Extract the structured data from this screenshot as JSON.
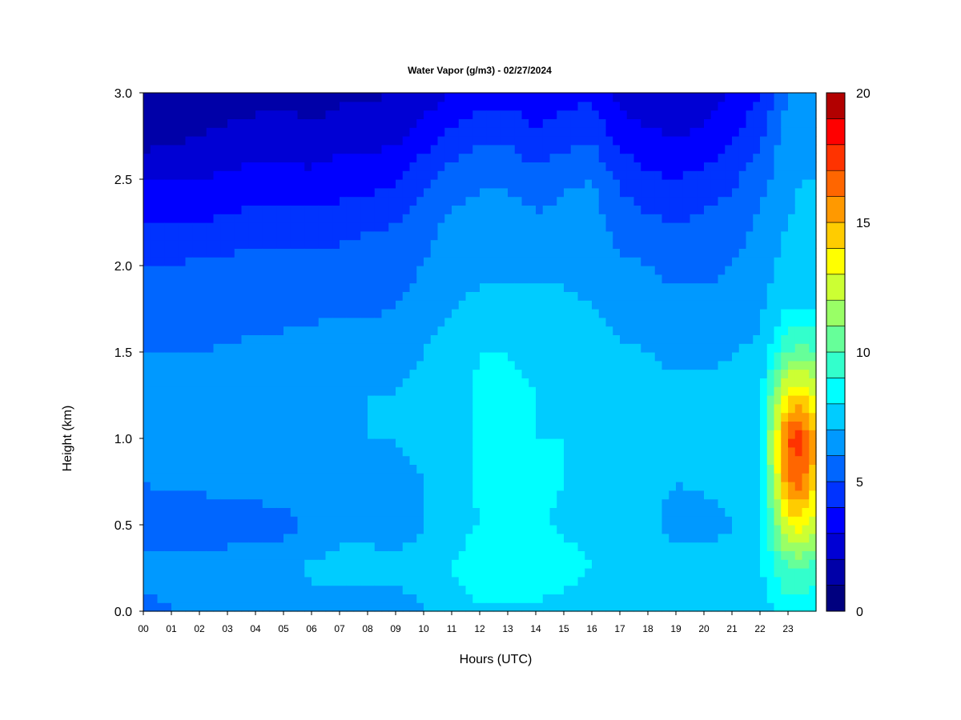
{
  "chart_data": {
    "type": "heatmap",
    "title": "Water Vapor (g/m3) - 02/27/2024",
    "xlabel": "Hours (UTC)",
    "ylabel": "Height (km)",
    "x_ticks": [
      "00",
      "01",
      "02",
      "03",
      "04",
      "05",
      "06",
      "07",
      "08",
      "09",
      "10",
      "11",
      "12",
      "13",
      "14",
      "15",
      "16",
      "17",
      "18",
      "19",
      "20",
      "21",
      "22",
      "23"
    ],
    "y_ticks": [
      "0.0",
      "0.5",
      "1.0",
      "1.5",
      "2.0",
      "2.5",
      "3.0"
    ],
    "xlim": [
      0,
      24
    ],
    "ylim": [
      0,
      3
    ],
    "colorbar": {
      "min": 0,
      "max": 20,
      "step": 1,
      "ticks": [
        "0",
        "5",
        "10",
        "15",
        "20"
      ],
      "colors": [
        "#00007f",
        "#0000a8",
        "#0000d4",
        "#0000ff",
        "#0033ff",
        "#0066ff",
        "#0099ff",
        "#00ccff",
        "#00ffff",
        "#33ffcc",
        "#66ff99",
        "#99ff66",
        "#ccff33",
        "#ffff00",
        "#ffcc00",
        "#ff9900",
        "#ff6600",
        "#ff3300",
        "#ff0000",
        "#b20000"
      ]
    },
    "heights_km": [
      0.0,
      0.25,
      0.5,
      0.75,
      1.0,
      1.25,
      1.5,
      1.75,
      2.0,
      2.25,
      2.5,
      2.75,
      3.0
    ],
    "hours": [
      0,
      1,
      2,
      3,
      4,
      5,
      6,
      7,
      8,
      9,
      10,
      11,
      12,
      13,
      14,
      15,
      16,
      17,
      18,
      19,
      20,
      21,
      22,
      23,
      23.5,
      24
    ],
    "profiles": [
      [
        5.5,
        6.5,
        5.0,
        6.0,
        6.5,
        6.5,
        6.0,
        5.5,
        5.0,
        4.0,
        3.0,
        1.5,
        1.0
      ],
      [
        6.0,
        6.5,
        5.2,
        6.3,
        6.5,
        6.5,
        6.0,
        5.5,
        5.0,
        4.0,
        3.0,
        1.8,
        1.2
      ],
      [
        6.0,
        6.5,
        5.2,
        6.3,
        6.6,
        6.6,
        6.0,
        5.6,
        5.2,
        4.0,
        3.0,
        2.0,
        1.3
      ],
      [
        6.0,
        6.7,
        5.3,
        6.5,
        6.6,
        6.6,
        6.1,
        5.6,
        5.3,
        4.2,
        3.2,
        2.2,
        1.5
      ],
      [
        6.0,
        6.8,
        5.4,
        6.5,
        6.7,
        6.7,
        6.2,
        5.7,
        5.4,
        4.4,
        3.4,
        2.4,
        1.6
      ],
      [
        6.0,
        6.8,
        5.6,
        6.7,
        6.8,
        6.8,
        6.2,
        5.8,
        5.4,
        4.4,
        3.4,
        2.4,
        1.8
      ],
      [
        6.5,
        7.2,
        6.2,
        6.8,
        6.9,
        6.9,
        6.4,
        5.8,
        5.4,
        4.3,
        3.3,
        2.2,
        1.5
      ],
      [
        6.5,
        7.4,
        6.6,
        6.8,
        6.9,
        6.9,
        6.6,
        5.8,
        5.5,
        4.5,
        3.5,
        2.6,
        1.8
      ],
      [
        6.5,
        7.4,
        6.7,
        6.8,
        7.0,
        7.0,
        6.6,
        5.8,
        5.6,
        4.8,
        3.6,
        2.6,
        1.8
      ],
      [
        6.5,
        7.2,
        6.5,
        6.8,
        7.0,
        7.0,
        6.8,
        6.0,
        5.7,
        5.0,
        3.8,
        2.8,
        2.0
      ],
      [
        7.0,
        7.5,
        7.0,
        7.0,
        7.2,
        7.2,
        7.0,
        6.4,
        6.0,
        5.6,
        4.8,
        3.5,
        2.4
      ],
      [
        7.5,
        8.0,
        7.5,
        7.6,
        7.6,
        7.6,
        7.5,
        7.0,
        6.6,
        6.2,
        5.6,
        4.3,
        3.0
      ],
      [
        7.8,
        8.8,
        8.0,
        8.2,
        8.2,
        8.2,
        8.0,
        7.2,
        6.8,
        6.5,
        5.8,
        4.8,
        3.6
      ],
      [
        7.8,
        8.8,
        8.2,
        8.2,
        8.2,
        8.2,
        8.0,
        7.2,
        6.8,
        6.5,
        5.8,
        4.8,
        3.6
      ],
      [
        7.8,
        8.8,
        8.2,
        8.2,
        8.0,
        8.0,
        7.8,
        7.2,
        6.8,
        6.2,
        5.4,
        4.2,
        3.2
      ],
      [
        7.5,
        8.5,
        7.8,
        8.0,
        8.0,
        7.8,
        7.6,
        7.2,
        6.8,
        6.4,
        5.8,
        4.6,
        3.6
      ],
      [
        7.2,
        8.0,
        7.6,
        7.8,
        7.8,
        7.8,
        7.5,
        7.0,
        6.8,
        6.5,
        6.0,
        4.8,
        3.8
      ],
      [
        7.2,
        7.8,
        7.5,
        7.6,
        7.6,
        7.6,
        7.2,
        6.6,
        6.2,
        5.6,
        4.8,
        3.6,
        2.6
      ],
      [
        7.0,
        7.6,
        7.3,
        7.5,
        7.5,
        7.4,
        7.0,
        6.4,
        6.0,
        5.2,
        4.2,
        3.2,
        2.2
      ],
      [
        7.0,
        7.5,
        6.5,
        7.0,
        7.2,
        7.2,
        6.8,
        6.2,
        5.8,
        5.0,
        4.0,
        3.0,
        2.0
      ],
      [
        7.0,
        7.6,
        6.5,
        7.2,
        7.4,
        7.2,
        6.8,
        6.2,
        5.8,
        5.2,
        4.4,
        3.2,
        2.4
      ],
      [
        7.0,
        7.5,
        7.0,
        7.2,
        7.5,
        7.2,
        7.0,
        6.4,
        6.0,
        5.5,
        4.8,
        3.8,
        3.0
      ],
      [
        7.5,
        7.8,
        7.5,
        7.6,
        7.8,
        7.6,
        7.2,
        6.8,
        6.5,
        6.2,
        5.6,
        4.8,
        4.0
      ],
      [
        8.5,
        10.0,
        13.0,
        16.0,
        17.0,
        14.0,
        10.0,
        8.0,
        7.5,
        7.0,
        6.8,
        6.5,
        6.0
      ],
      [
        8.5,
        10.0,
        13.5,
        16.5,
        17.5,
        14.0,
        10.5,
        8.0,
        7.5,
        7.2,
        7.0,
        6.8,
        6.2
      ],
      [
        8.0,
        9.5,
        12.0,
        14.0,
        15.0,
        13.0,
        10.0,
        8.0,
        7.5,
        7.2,
        7.0,
        6.8,
        6.5
      ]
    ]
  }
}
